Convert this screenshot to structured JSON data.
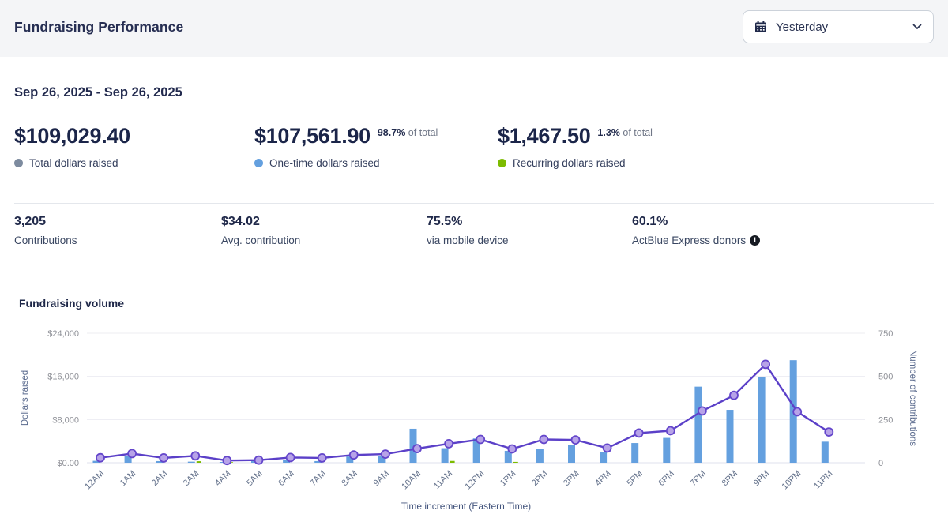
{
  "header": {
    "title": "Fundraising Performance",
    "date_filter": {
      "selected": "Yesterday",
      "icon": "calendar-icon"
    }
  },
  "date_range": "Sep 26, 2025 - Sep 26, 2025",
  "summary": {
    "total": {
      "amount": "$109,029.40",
      "label": "Total dollars raised",
      "dot_color": "#7D8B9F"
    },
    "one_time": {
      "amount": "$107,561.90",
      "pct": "98.7%",
      "pct_suffix": "of total",
      "label": "One-time dollars raised",
      "dot_color": "#64A0DF"
    },
    "recurring": {
      "amount": "$1,467.50",
      "pct": "1.3%",
      "pct_suffix": "of total",
      "label": "Recurring dollars raised",
      "dot_color": "#7CBB00"
    }
  },
  "stats": [
    {
      "value": "3,205",
      "label": "Contributions"
    },
    {
      "value": "$34.02",
      "label": "Avg. contribution"
    },
    {
      "value": "75.5%",
      "label": "via mobile device"
    },
    {
      "value": "60.1%",
      "label": "ActBlue Express donors",
      "info": true
    }
  ],
  "chart_data": {
    "type": "bar+line",
    "title": "Fundraising volume",
    "xlabel": "Time increment (Eastern Time)",
    "ylabel_left": "Dollars raised",
    "ylabel_right": "Number of contributions",
    "y_left_ticks": [
      "$0.00",
      "$8,000",
      "$16,000",
      "$24,000"
    ],
    "y_left_max": 24000,
    "y_right_ticks": [
      "0",
      "250",
      "500",
      "750"
    ],
    "y_right_max": 750,
    "grid": true,
    "legend": "none",
    "categories": [
      "12AM",
      "1AM",
      "2AM",
      "3AM",
      "4AM",
      "5AM",
      "6AM",
      "7AM",
      "8AM",
      "9AM",
      "10AM",
      "11AM",
      "12PM",
      "1PM",
      "2PM",
      "3PM",
      "4PM",
      "5PM",
      "6PM",
      "7PM",
      "8PM",
      "9PM",
      "10PM",
      "11PM"
    ],
    "series": [
      {
        "name": "One-time dollars raised",
        "type": "bar",
        "axis": "left",
        "color": "#64A0DF",
        "values": [
          350,
          1300,
          300,
          200,
          150,
          600,
          450,
          300,
          1150,
          1250,
          6300,
          2700,
          4500,
          2200,
          2500,
          3300,
          1950,
          3650,
          4600,
          14100,
          9800,
          15900,
          19000,
          3900
        ]
      },
      {
        "name": "Recurring dollars raised",
        "type": "bar",
        "axis": "left",
        "color": "#7CBB00",
        "values": [
          10,
          25,
          15,
          280,
          120,
          10,
          20,
          15,
          30,
          35,
          55,
          330,
          70,
          160,
          35,
          25,
          20,
          35,
          55,
          45,
          40,
          25,
          10,
          7.5
        ]
      },
      {
        "name": "Number of contributions",
        "type": "line",
        "axis": "right",
        "color": "#5B40C8",
        "marker_fill": "#B7A3E8",
        "marker_stroke": "#6446CB",
        "values": [
          29,
          53,
          28,
          40,
          13,
          15,
          30,
          28,
          45,
          50,
          82,
          110,
          135,
          80,
          135,
          132,
          85,
          172,
          185,
          300,
          390,
          570,
          295,
          178
        ]
      }
    ]
  }
}
